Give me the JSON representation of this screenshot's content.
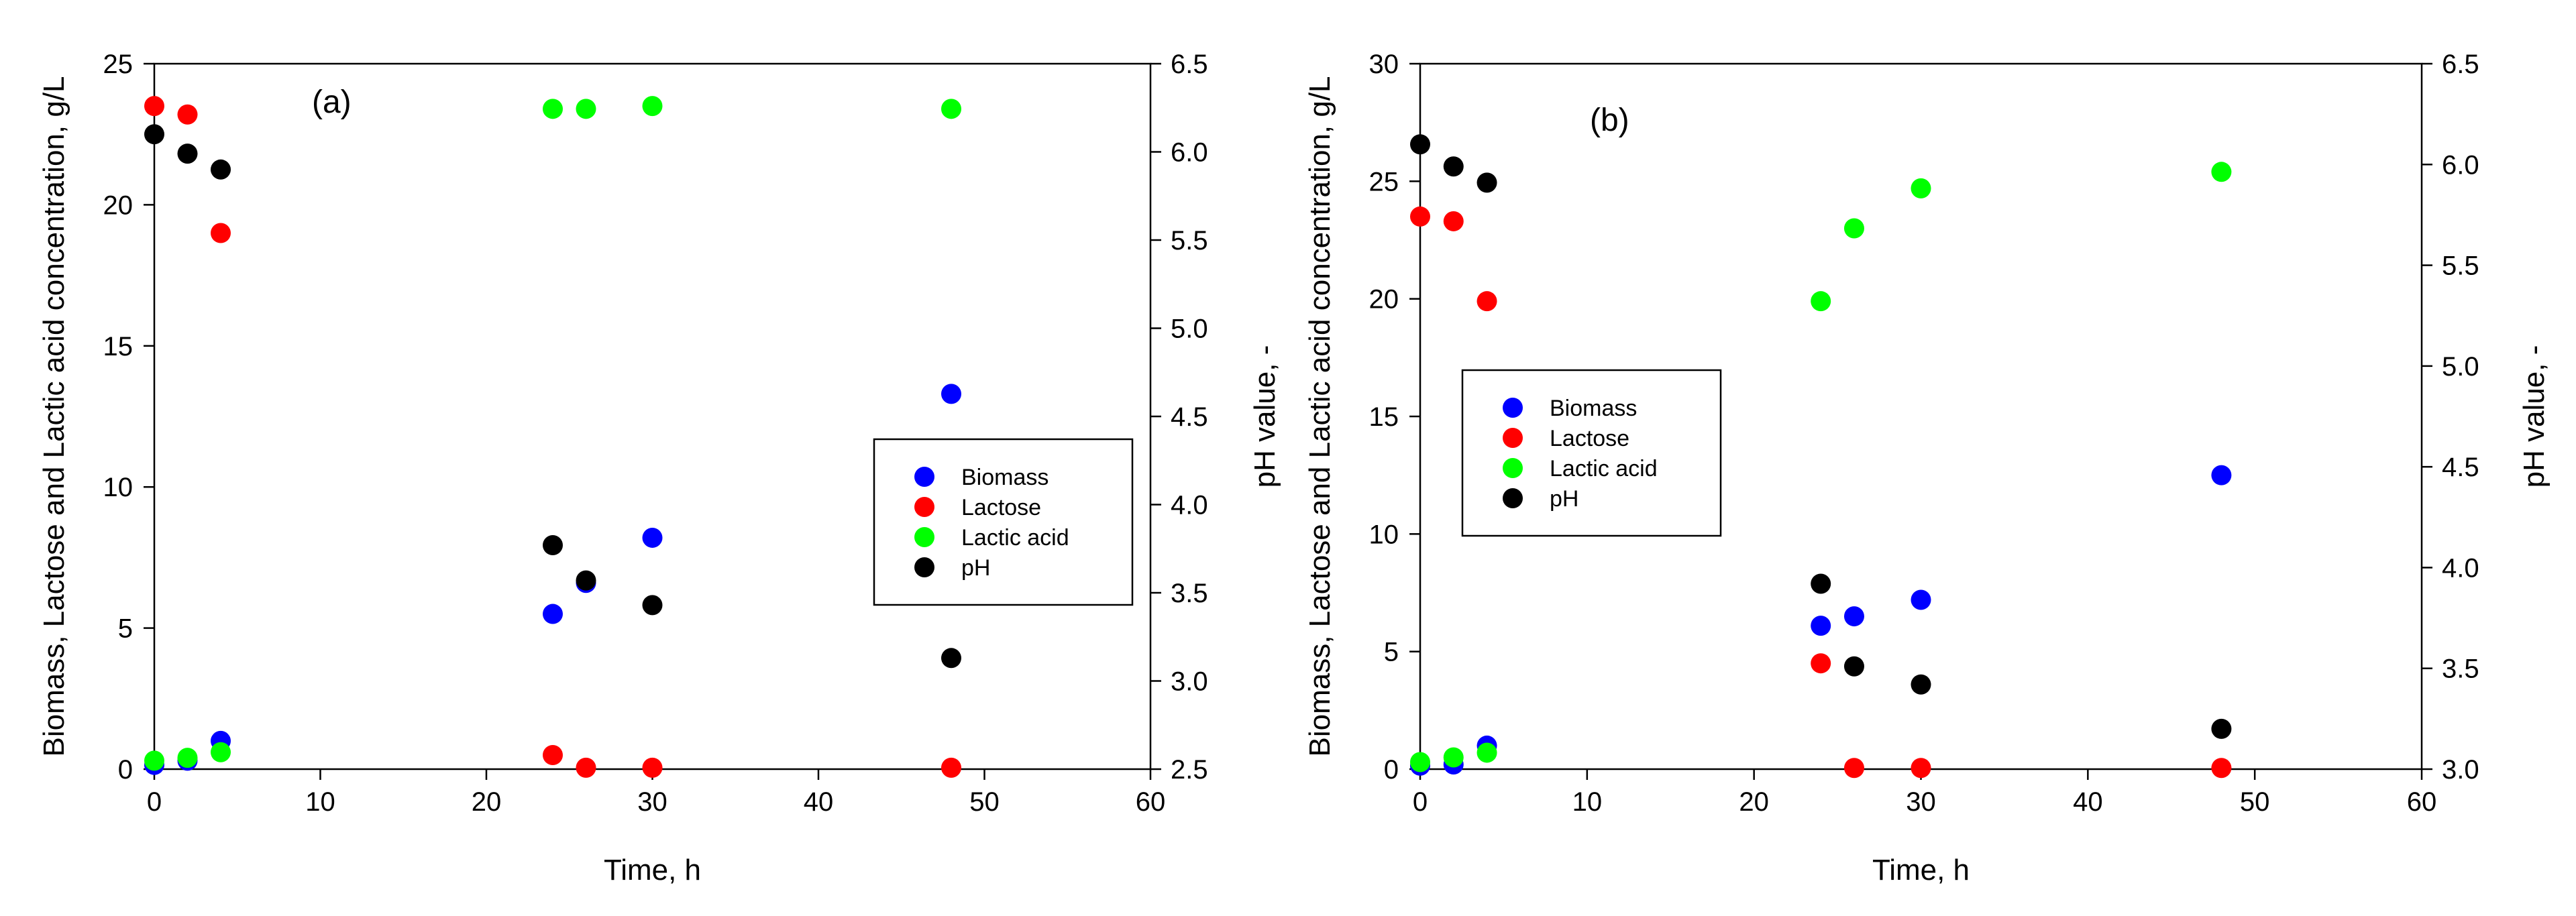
{
  "chart_data": [
    {
      "type": "scatter",
      "panel_label": "(a)",
      "xlabel": "Time, h",
      "ylabel": "Biomass, Lactose and Lactic acid concentration, g/L",
      "y2label": "pH value, -",
      "xlim": [
        0,
        60
      ],
      "ylim": [
        0,
        25
      ],
      "y2lim": [
        2.5,
        6.5
      ],
      "xticks": [
        0,
        10,
        20,
        30,
        40,
        50,
        60
      ],
      "yticks": [
        0,
        5,
        10,
        15,
        20,
        25
      ],
      "y2ticks": [
        "2.5",
        "3.0",
        "3.5",
        "4.0",
        "4.5",
        "5.0",
        "5.5",
        "6.0",
        "6.5"
      ],
      "legend_position": "center-right",
      "series": [
        {
          "name": "Biomass",
          "axis": "left",
          "color": "#0000ff",
          "x": [
            0,
            2,
            4,
            24,
            26,
            30,
            48
          ],
          "y": [
            0.15,
            0.3,
            1.0,
            5.5,
            6.6,
            8.2,
            13.3
          ]
        },
        {
          "name": "Lactose",
          "axis": "left",
          "color": "#ff0000",
          "x": [
            0,
            2,
            4,
            24,
            26,
            30,
            48
          ],
          "y": [
            23.5,
            23.2,
            19.0,
            0.5,
            0.05,
            0.05,
            0.05
          ]
        },
        {
          "name": "Lactic acid",
          "axis": "left",
          "color": "#00ff00",
          "x": [
            0,
            2,
            4,
            24,
            26,
            30,
            48
          ],
          "y": [
            0.3,
            0.4,
            0.6,
            23.4,
            23.4,
            23.5,
            23.4
          ]
        },
        {
          "name": "pH",
          "axis": "right",
          "color": "#000000",
          "x": [
            0,
            2,
            4,
            24,
            26,
            30,
            48
          ],
          "y": [
            6.1,
            5.99,
            5.9,
            3.77,
            3.57,
            3.43,
            3.13
          ]
        }
      ]
    },
    {
      "type": "scatter",
      "panel_label": "(b)",
      "xlabel": "Time, h",
      "ylabel": "Biomass, Lactose and Lactic acid concentration, g/L",
      "y2label": "pH value, -",
      "xlim": [
        0,
        60
      ],
      "ylim": [
        0,
        30
      ],
      "y2lim": [
        3.0,
        6.5
      ],
      "xticks": [
        0,
        10,
        20,
        30,
        40,
        50,
        60
      ],
      "yticks": [
        0,
        5,
        10,
        15,
        20,
        25,
        30
      ],
      "y2ticks": [
        "3.0",
        "3.5",
        "4.0",
        "4.5",
        "5.0",
        "5.5",
        "6.0",
        "6.5"
      ],
      "legend_position": "center-left",
      "series": [
        {
          "name": "Biomass",
          "axis": "left",
          "color": "#0000ff",
          "x": [
            0,
            2,
            4,
            24,
            26,
            30,
            48
          ],
          "y": [
            0.15,
            0.2,
            1.0,
            6.1,
            6.5,
            7.2,
            12.5
          ]
        },
        {
          "name": "Lactose",
          "axis": "left",
          "color": "#ff0000",
          "x": [
            0,
            2,
            4,
            24,
            26,
            30,
            48
          ],
          "y": [
            23.5,
            23.3,
            19.9,
            4.5,
            0.05,
            0.05,
            0.05
          ]
        },
        {
          "name": "Lactic acid",
          "axis": "left",
          "color": "#00ff00",
          "x": [
            0,
            2,
            4,
            24,
            26,
            30,
            48
          ],
          "y": [
            0.3,
            0.5,
            0.7,
            19.9,
            23.0,
            24.7,
            25.4
          ]
        },
        {
          "name": "pH",
          "axis": "right",
          "color": "#000000",
          "x": [
            0,
            2,
            4,
            24,
            26,
            30,
            48
          ],
          "y": [
            6.1,
            5.99,
            5.91,
            3.92,
            3.51,
            3.42,
            3.2
          ]
        }
      ]
    }
  ]
}
